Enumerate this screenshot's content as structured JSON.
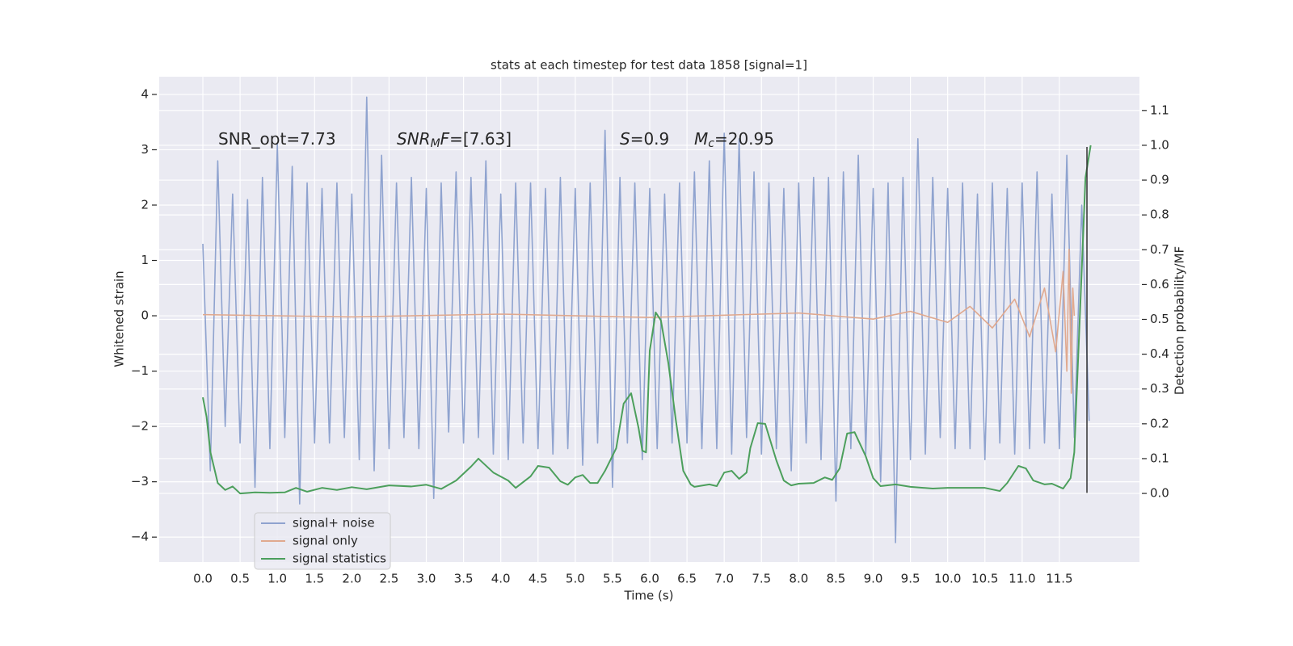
{
  "chart_data": {
    "type": "line",
    "title": "stats at each timestep for test data 1858 [signal=1]",
    "xlabel": "Time (s)",
    "ylabel": "Whitened strain",
    "y2label": "Detection probability/MF",
    "annotations": [
      [
        {
          "text": "SNR_opt=7.73",
          "style": "normal"
        }
      ],
      [
        {
          "text": "SNR",
          "style": "italic"
        },
        {
          "text": "M",
          "style": "sub"
        },
        {
          "text": "F",
          "style": "italic"
        },
        {
          "text": "=[7.63]",
          "style": "normal"
        }
      ],
      [
        {
          "text": "S",
          "style": "italic"
        },
        {
          "text": "=0.9",
          "style": "normal"
        }
      ],
      [
        {
          "text": "M",
          "style": "italic"
        },
        {
          "text": "c",
          "style": "sub"
        },
        {
          "text": "=20.95",
          "style": "normal"
        }
      ]
    ],
    "xlim": [
      -0.586,
      12.575
    ],
    "ylim": [
      -4.45,
      4.32
    ],
    "y2lim": [
      -0.197,
      1.197
    ],
    "xticks": [
      {
        "value": 0,
        "label": "0.0"
      },
      0.5,
      {
        "value": 1,
        "label": "1.0"
      },
      1.5,
      {
        "value": 2,
        "label": "2.0"
      },
      2.5,
      {
        "value": 3,
        "label": "3.0"
      },
      3.5,
      {
        "value": 4,
        "label": "4.0"
      },
      4.5,
      {
        "value": 5,
        "label": "5.0"
      },
      5.5,
      {
        "value": 6,
        "label": "6.0"
      },
      6.5,
      {
        "value": 7,
        "label": "7.0"
      },
      7.5,
      {
        "value": 8,
        "label": "8.0"
      },
      8.5,
      {
        "value": 9,
        "label": "9.0"
      },
      9.5,
      {
        "value": 10,
        "label": "10.0"
      },
      10.5,
      {
        "value": 11,
        "label": "11.0"
      },
      11.5
    ],
    "yticks": [
      {
        "value": -4,
        "label": "−4"
      },
      {
        "value": -3,
        "label": "−3"
      },
      {
        "value": -2,
        "label": "−2"
      },
      {
        "value": -1,
        "label": "−1"
      },
      0,
      1,
      2,
      3,
      4
    ],
    "y2ticks": [
      {
        "value": 0,
        "label": "0.0"
      },
      0.1,
      0.2,
      0.3,
      0.4,
      0.5,
      0.6,
      0.7,
      0.8,
      0.9,
      {
        "value": 1,
        "label": "1.0"
      },
      1.1
    ],
    "grid": true,
    "legend": "lower left",
    "vline": {
      "x": 11.87,
      "y": [
        -3.2,
        3.05
      ],
      "color": "#333333"
    },
    "series": [
      {
        "name": "signal+ noise",
        "color": "#8fa3cf",
        "width": 1.6,
        "x": [
          0,
          0.1,
          0.2,
          0.3,
          0.4,
          0.5,
          0.6,
          0.7,
          0.8,
          0.9,
          1,
          1.1,
          1.2,
          1.3,
          1.4,
          1.5,
          1.6,
          1.7,
          1.8,
          1.9,
          2,
          2.1,
          2.2,
          2.3,
          2.4,
          2.5,
          2.6,
          2.7,
          2.8,
          2.9,
          3,
          3.1,
          3.2,
          3.3,
          3.4,
          3.5,
          3.6,
          3.7,
          3.8,
          3.9,
          4,
          4.1,
          4.2,
          4.3,
          4.4,
          4.5,
          4.6,
          4.7,
          4.8,
          4.9,
          5,
          5.1,
          5.2,
          5.3,
          5.4,
          5.5,
          5.6,
          5.7,
          5.8,
          5.9,
          6,
          6.1,
          6.2,
          6.3,
          6.4,
          6.5,
          6.6,
          6.7,
          6.8,
          6.9,
          7,
          7.1,
          7.2,
          7.3,
          7.4,
          7.5,
          7.6,
          7.7,
          7.8,
          7.9,
          8,
          8.1,
          8.2,
          8.3,
          8.4,
          8.5,
          8.6,
          8.7,
          8.8,
          8.9,
          9,
          9.1,
          9.2,
          9.3,
          9.4,
          9.5,
          9.6,
          9.7,
          9.8,
          9.9,
          10,
          10.1,
          10.2,
          10.3,
          10.4,
          10.5,
          10.6,
          10.7,
          10.8,
          10.9,
          11,
          11.1,
          11.2,
          11.3,
          11.4,
          11.5,
          11.6,
          11.7,
          11.8,
          11.9
        ],
        "values": [
          1.3,
          -2.8,
          2.8,
          -2.0,
          2.2,
          -2.3,
          2.1,
          -3.1,
          2.5,
          -2.4,
          3.1,
          -2.2,
          2.7,
          -3.4,
          2.4,
          -2.3,
          2.3,
          -2.3,
          2.4,
          -2.2,
          2.2,
          -2.6,
          3.95,
          -2.8,
          2.9,
          -2.4,
          2.4,
          -2.2,
          2.5,
          -2.4,
          2.3,
          -3.3,
          2.4,
          -2.1,
          2.6,
          -2.3,
          2.5,
          -2.2,
          2.8,
          -2.5,
          2.2,
          -2.6,
          2.4,
          -2.3,
          2.4,
          -2.4,
          2.3,
          -2.5,
          2.5,
          -2.4,
          2.3,
          -2.7,
          2.4,
          -2.3,
          3.35,
          -3.1,
          2.5,
          -2.3,
          2.4,
          -2.6,
          2.3,
          -2.4,
          2.2,
          -2.3,
          2.4,
          -2.3,
          2.6,
          -2.4,
          2.8,
          -2.4,
          3.3,
          -2.5,
          3.2,
          -2.2,
          2.6,
          -2.5,
          2.4,
          -2.4,
          2.3,
          -2.8,
          2.4,
          -2.3,
          2.5,
          -2.6,
          2.5,
          -3.35,
          2.6,
          -2.4,
          2.9,
          -2.5,
          2.3,
          -3.0,
          2.4,
          -4.1,
          2.5,
          -2.6,
          3.2,
          -2.5,
          2.5,
          -2.2,
          2.3,
          -2.4,
          2.4,
          -2.4,
          2.2,
          -2.6,
          2.4,
          -2.3,
          2.3,
          -2.5,
          2.4,
          -2.4,
          2.6,
          -2.3,
          2.2,
          -2.4,
          2.9,
          -2.2,
          2.0,
          -1.9
        ]
      },
      {
        "name": "signal only",
        "color": "#e0a98f",
        "width": 1.6,
        "x": [
          0,
          2,
          4,
          6,
          8,
          9,
          9.5,
          10,
          10.3,
          10.6,
          10.9,
          11.1,
          11.3,
          11.45,
          11.55,
          11.6,
          11.63,
          11.66,
          11.68,
          11.7
        ],
        "values": [
          0.02,
          -0.02,
          0.03,
          -0.03,
          0.05,
          -0.06,
          0.08,
          -0.12,
          0.17,
          -0.22,
          0.3,
          -0.38,
          0.5,
          -0.65,
          0.8,
          -1.0,
          1.2,
          -1.4,
          0.5,
          0
        ]
      },
      {
        "name": "signal statistics",
        "color": "#4c9f5c",
        "width": 2,
        "axis": "y2",
        "x": [
          0,
          0.05,
          0.1,
          0.2,
          0.3,
          0.4,
          0.5,
          0.7,
          0.9,
          1.1,
          1.25,
          1.4,
          1.6,
          1.8,
          2.0,
          2.2,
          2.5,
          2.8,
          3.0,
          3.2,
          3.4,
          3.6,
          3.7,
          3.9,
          4.1,
          4.2,
          4.4,
          4.5,
          4.65,
          4.8,
          4.9,
          5.0,
          5.1,
          5.2,
          5.3,
          5.4,
          5.55,
          5.65,
          5.75,
          5.85,
          5.9,
          5.95,
          6.0,
          6.08,
          6.15,
          6.25,
          6.35,
          6.45,
          6.55,
          6.6,
          6.8,
          6.9,
          7.0,
          7.1,
          7.2,
          7.3,
          7.35,
          7.45,
          7.55,
          7.7,
          7.8,
          7.9,
          8.0,
          8.2,
          8.35,
          8.45,
          8.55,
          8.65,
          8.75,
          8.9,
          9.0,
          9.1,
          9.3,
          9.5,
          9.8,
          10.0,
          10.5,
          10.7,
          10.8,
          10.95,
          11.05,
          11.15,
          11.3,
          11.4,
          11.55,
          11.65,
          11.7,
          11.78,
          11.85,
          11.92
        ],
        "values": [
          0.276,
          0.22,
          0.12,
          0.03,
          0.01,
          0.02,
          0.0,
          0.003,
          0.002,
          0.003,
          0.016,
          0.005,
          0.016,
          0.01,
          0.018,
          0.012,
          0.023,
          0.02,
          0.025,
          0.013,
          0.037,
          0.077,
          0.1,
          0.06,
          0.037,
          0.016,
          0.049,
          0.079,
          0.074,
          0.035,
          0.025,
          0.046,
          0.053,
          0.03,
          0.03,
          0.065,
          0.13,
          0.258,
          0.288,
          0.188,
          0.123,
          0.118,
          0.41,
          0.52,
          0.497,
          0.374,
          0.211,
          0.065,
          0.026,
          0.019,
          0.026,
          0.021,
          0.06,
          0.065,
          0.042,
          0.06,
          0.13,
          0.202,
          0.2,
          0.095,
          0.037,
          0.023,
          0.028,
          0.03,
          0.046,
          0.039,
          0.072,
          0.172,
          0.176,
          0.107,
          0.044,
          0.021,
          0.026,
          0.019,
          0.014,
          0.016,
          0.016,
          0.007,
          0.03,
          0.079,
          0.072,
          0.037,
          0.026,
          0.028,
          0.014,
          0.044,
          0.118,
          0.536,
          0.907,
          1.0
        ]
      }
    ]
  }
}
